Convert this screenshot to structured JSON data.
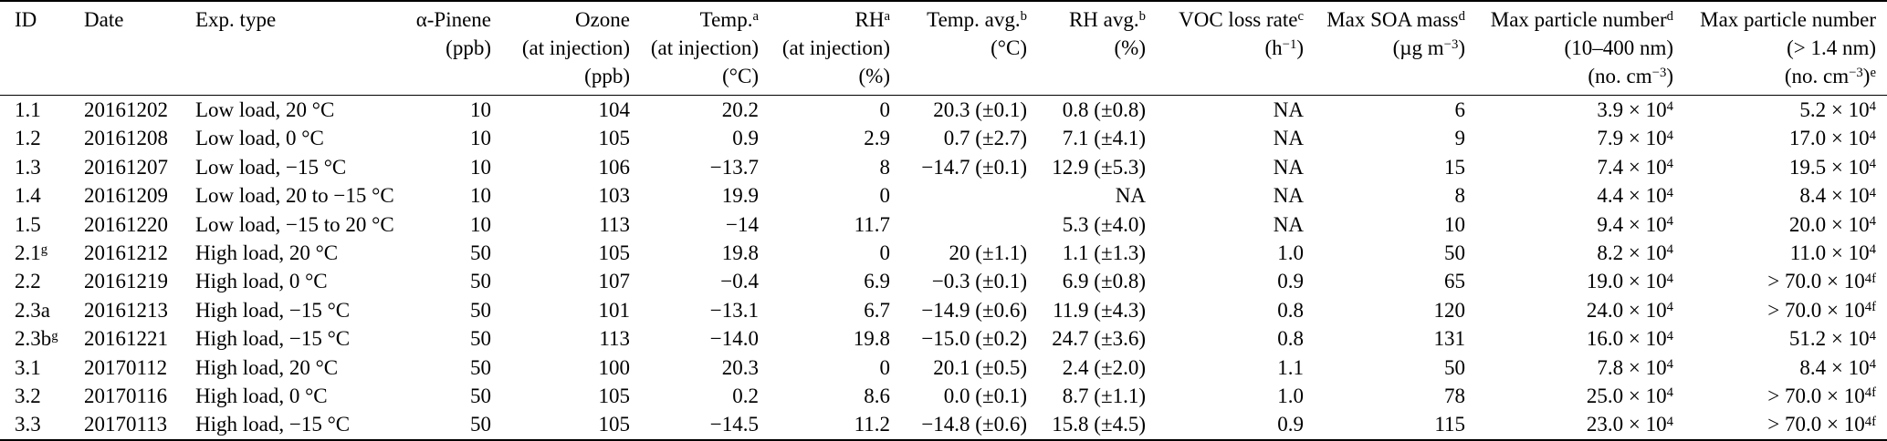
{
  "table": {
    "columns": [
      {
        "id": "id",
        "lines": [
          "ID"
        ]
      },
      {
        "id": "date",
        "lines": [
          "Date"
        ]
      },
      {
        "id": "exp-type",
        "lines": [
          "Exp. type"
        ]
      },
      {
        "id": "alpha-pinene",
        "lines": [
          "α-Pinene",
          "(ppb)"
        ]
      },
      {
        "id": "ozone",
        "lines": [
          "Ozone",
          "(at injection)",
          "(ppb)"
        ]
      },
      {
        "id": "temp-injection",
        "lines": [
          "Temp.^{a}",
          "(at injection)",
          "(°C)"
        ]
      },
      {
        "id": "rh-injection",
        "lines": [
          "RH^{a}",
          "(at injection)",
          "(%)"
        ]
      },
      {
        "id": "temp-avg",
        "lines": [
          "Temp. avg.^{b}",
          "(°C)"
        ]
      },
      {
        "id": "rh-avg",
        "lines": [
          "RH avg.^{b}",
          "(%)"
        ]
      },
      {
        "id": "voc-loss-rate",
        "lines": [
          "VOC loss rate^{c}",
          "(h^{−1})"
        ]
      },
      {
        "id": "max-soa-mass",
        "lines": [
          "Max SOA mass^{d}",
          "(µg m^{−3})"
        ]
      },
      {
        "id": "max-particle-number-10-400",
        "lines": [
          "Max particle number^{d}",
          "(10–400 nm)",
          "(no. cm^{−3})"
        ]
      },
      {
        "id": "max-particle-number-gt-1-4",
        "lines": [
          "Max particle number",
          "(> 1.4 nm)",
          "(no. cm^{−3})^{e}"
        ]
      }
    ],
    "rows": [
      {
        "cells": [
          "1.1",
          "20161202",
          "Low load, 20 °C",
          "10",
          "104",
          "20.2",
          "0",
          "20.3 (±0.1)",
          "0.8 (±0.8)",
          "NA",
          "6",
          "3.9 × 10^{4}",
          "5.2 × 10^{4}"
        ]
      },
      {
        "cells": [
          "1.2",
          "20161208",
          "Low load, 0 °C",
          "10",
          "105",
          "0.9",
          "2.9",
          "0.7 (±2.7)",
          "7.1 (±4.1)",
          "NA",
          "9",
          "7.9 × 10^{4}",
          "17.0 × 10^{4}"
        ]
      },
      {
        "cells": [
          "1.3",
          "20161207",
          "Low load, −15 °C",
          "10",
          "106",
          "−13.7",
          "8",
          "−14.7 (±0.1)",
          "12.9 (±5.3)",
          "NA",
          "15",
          "7.4 × 10^{4}",
          "19.5 × 10^{4}"
        ]
      },
      {
        "cells": [
          "1.4",
          "20161209",
          "Low load, 20 to −15 °C",
          "10",
          "103",
          "19.9",
          "0",
          "",
          "NA",
          "NA",
          "8",
          "4.4 × 10^{4}",
          "8.4 × 10^{4}"
        ]
      },
      {
        "cells": [
          "1.5",
          "20161220",
          "Low load, −15 to 20 °C",
          "10",
          "113",
          "−14",
          "11.7",
          "",
          "5.3 (±4.0)",
          "NA",
          "10",
          "9.4 × 10^{4}",
          "20.0 × 10^{4}"
        ]
      },
      {
        "cells": [
          "2.1^{g}",
          "20161212",
          "High load, 20 °C",
          "50",
          "105",
          "19.8",
          "0",
          "20 (±1.1)",
          "1.1 (±1.3)",
          "1.0",
          "50",
          "8.2 × 10^{4}",
          "11.0 × 10^{4}"
        ]
      },
      {
        "cells": [
          "2.2",
          "20161219",
          "High load, 0 °C",
          "50",
          "107",
          "−0.4",
          "6.9",
          "−0.3 (±0.1)",
          "6.9 (±0.8)",
          "0.9",
          "65",
          "19.0 × 10^{4}",
          "> 70.0 × 10^{4f}"
        ]
      },
      {
        "cells": [
          "2.3a",
          "20161213",
          "High load, −15 °C",
          "50",
          "101",
          "−13.1",
          "6.7",
          "−14.9 (±0.6)",
          "11.9 (±4.3)",
          "0.8",
          "120",
          "24.0 × 10^{4}",
          "> 70.0 × 10^{4f}"
        ]
      },
      {
        "cells": [
          "2.3b^{g}",
          "20161221",
          "High load, −15 °C",
          "50",
          "113",
          "−14.0",
          "19.8",
          "−15.0 (±0.2)",
          "24.7 (±3.6)",
          "0.8",
          "131",
          "16.0 × 10^{4}",
          "51.2 × 10^{4}"
        ]
      },
      {
        "cells": [
          "3.1",
          "20170112",
          "High load, 20 °C",
          "50",
          "100",
          "20.3",
          "0",
          "20.1 (±0.5)",
          "2.4 (±2.0)",
          "1.1",
          "50",
          "7.8 × 10^{4}",
          "8.4 × 10^{4}"
        ]
      },
      {
        "cells": [
          "3.2",
          "20170116",
          "High load, 0 °C",
          "50",
          "105",
          "0.2",
          "8.6",
          "0.0 (±0.1)",
          "8.7 (±1.1)",
          "1.0",
          "78",
          "25.0 × 10^{4}",
          "> 70.0 × 10^{4f}"
        ]
      },
      {
        "cells": [
          "3.3",
          "20170113",
          "High load, −15 °C",
          "50",
          "105",
          "−14.5",
          "11.2",
          "−14.8 (±0.6)",
          "15.8 (±4.5)",
          "0.9",
          "115",
          "23.0 × 10^{4}",
          "> 70.0 × 10^{4f}"
        ]
      }
    ]
  }
}
